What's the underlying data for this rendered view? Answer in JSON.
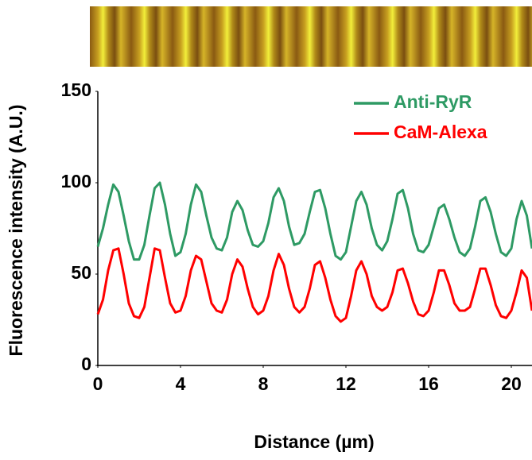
{
  "chart_data": {
    "type": "line",
    "xlabel": "Distance (µm)",
    "ylabel": "Fluorescence intensity (A.U.)",
    "x": [
      0,
      0.25,
      0.5,
      0.75,
      1,
      1.25,
      1.5,
      1.75,
      2,
      2.25,
      2.5,
      2.75,
      3,
      3.25,
      3.5,
      3.75,
      4,
      4.25,
      4.5,
      4.75,
      5,
      5.25,
      5.5,
      5.75,
      6,
      6.25,
      6.5,
      6.75,
      7,
      7.25,
      7.5,
      7.75,
      8,
      8.25,
      8.5,
      8.75,
      9,
      9.25,
      9.5,
      9.75,
      10,
      10.25,
      10.5,
      10.75,
      11,
      11.25,
      11.5,
      11.75,
      12,
      12.25,
      12.5,
      12.75,
      13,
      13.25,
      13.5,
      13.75,
      14,
      14.25,
      14.5,
      14.75,
      15,
      15.25,
      15.5,
      15.75,
      16,
      16.25,
      16.5,
      16.75,
      17,
      17.25,
      17.5,
      17.75,
      18,
      18.25,
      18.5,
      18.75,
      19,
      19.25,
      19.5,
      19.75,
      20,
      20.25,
      20.5,
      20.75,
      21
    ],
    "series": [
      {
        "name": "Anti-RyR",
        "color": "#2e9a64",
        "values": [
          65,
          75,
          88,
          99,
          95,
          82,
          68,
          58,
          58,
          66,
          82,
          97,
          100,
          88,
          72,
          60,
          62,
          72,
          88,
          99,
          95,
          82,
          70,
          64,
          63,
          70,
          84,
          90,
          85,
          74,
          66,
          65,
          68,
          78,
          92,
          97,
          90,
          76,
          66,
          67,
          72,
          84,
          95,
          96,
          86,
          72,
          60,
          58,
          62,
          76,
          90,
          95,
          88,
          75,
          66,
          63,
          68,
          80,
          94,
          96,
          86,
          72,
          63,
          62,
          66,
          76,
          86,
          88,
          80,
          70,
          62,
          60,
          64,
          76,
          90,
          92,
          84,
          72,
          62,
          60,
          64,
          80,
          90,
          82,
          64
        ]
      },
      {
        "name": "CaM-Alexa",
        "color": "#ff0000",
        "values": [
          28,
          36,
          52,
          63,
          64,
          50,
          34,
          27,
          26,
          32,
          48,
          64,
          63,
          48,
          34,
          29,
          30,
          38,
          52,
          60,
          58,
          46,
          34,
          30,
          29,
          36,
          50,
          58,
          54,
          42,
          32,
          28,
          30,
          38,
          52,
          61,
          55,
          42,
          32,
          29,
          32,
          42,
          55,
          57,
          48,
          36,
          27,
          24,
          26,
          38,
          52,
          57,
          50,
          38,
          32,
          30,
          32,
          40,
          52,
          53,
          45,
          35,
          28,
          27,
          30,
          40,
          52,
          52,
          44,
          34,
          30,
          30,
          32,
          42,
          53,
          53,
          44,
          33,
          27,
          26,
          30,
          40,
          52,
          48,
          30
        ]
      }
    ],
    "xlim": [
      0,
      21
    ],
    "xticks": [
      0,
      4,
      8,
      12,
      16,
      20
    ],
    "ylim": [
      0,
      150
    ],
    "yticks": [
      0,
      50,
      100,
      150
    ],
    "grid": false,
    "legend": "top-right"
  }
}
